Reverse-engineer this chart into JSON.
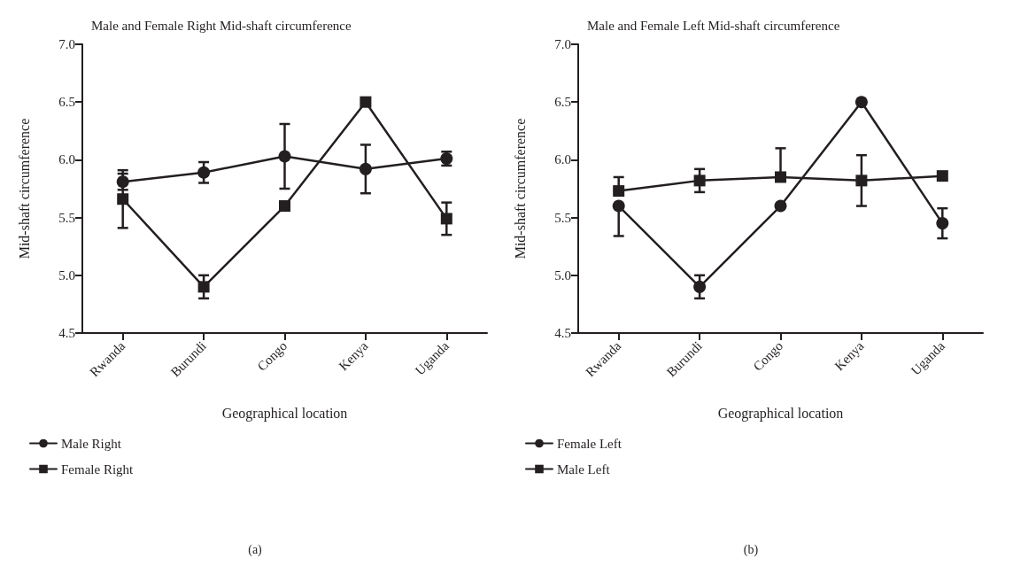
{
  "chart_data": [
    {
      "type": "line",
      "title": "Male and Female Right Mid-shaft circumference",
      "xlabel": "Geographical location",
      "ylabel": "Mid-shaft circumference",
      "categories": [
        "Rwanda",
        "Burundi",
        "Congo",
        "Kenya",
        "Uganda"
      ],
      "series": [
        {
          "name": "Male Right",
          "color": "#231f20",
          "marker": "circle",
          "values": [
            5.81,
            5.89,
            6.03,
            5.92,
            6.01
          ],
          "errors": [
            [
              5.74,
              5.91
            ],
            [
              5.8,
              5.98
            ],
            [
              5.75,
              6.31
            ],
            [
              5.71,
              6.13
            ],
            [
              5.95,
              6.07
            ]
          ]
        },
        {
          "name": "Female Right",
          "color": "#231f20",
          "marker": "square",
          "values": [
            5.66,
            4.9,
            5.6,
            6.5,
            5.49
          ],
          "errors": [
            [
              5.41,
              5.88
            ],
            [
              4.8,
              5.0
            ],
            null,
            null,
            [
              5.35,
              5.63
            ]
          ]
        }
      ],
      "ylim": [
        4.5,
        7.0
      ],
      "yticks": [
        4.5,
        {
          "value": 5,
          "label": "5.0"
        },
        5.5,
        {
          "value": 6,
          "label": "6.0"
        },
        6.5,
        {
          "value": 7,
          "label": "7.0"
        }
      ],
      "grid": false,
      "legend": "bottom left",
      "line_style": "solid",
      "annotations": [
        "(a)"
      ]
    },
    {
      "type": "line",
      "title": "Male and Female Left Mid-shaft circumference",
      "xlabel": "Geographical location",
      "ylabel": "Mid-shaft circumference",
      "categories": [
        "Rwanda",
        "Burundi",
        "Congo",
        "Kenya",
        "Uganda"
      ],
      "series": [
        {
          "name": "Female Left",
          "color": "#231f20",
          "marker": "circle",
          "values": [
            5.6,
            4.9,
            5.6,
            6.5,
            5.45
          ],
          "errors": [
            [
              5.34,
              5.6
            ],
            [
              4.8,
              5.0
            ],
            null,
            null,
            [
              5.32,
              5.58
            ]
          ]
        },
        {
          "name": "Male Left",
          "color": "#231f20",
          "marker": "square",
          "values": [
            5.73,
            5.82,
            5.85,
            5.82,
            5.86
          ],
          "errors": [
            [
              5.73,
              5.85
            ],
            [
              5.72,
              5.92
            ],
            [
              5.85,
              6.1
            ],
            [
              5.6,
              6.04
            ],
            null
          ]
        }
      ],
      "ylim": [
        4.5,
        7.0
      ],
      "yticks": [
        4.5,
        {
          "value": 5,
          "label": "5.0"
        },
        5.5,
        {
          "value": 6,
          "label": "6.0"
        },
        6.5,
        {
          "value": 7,
          "label": "7.0"
        }
      ],
      "grid": false,
      "legend": "bottom left",
      "line_style": "solid",
      "annotations": [
        "(b)"
      ]
    }
  ]
}
